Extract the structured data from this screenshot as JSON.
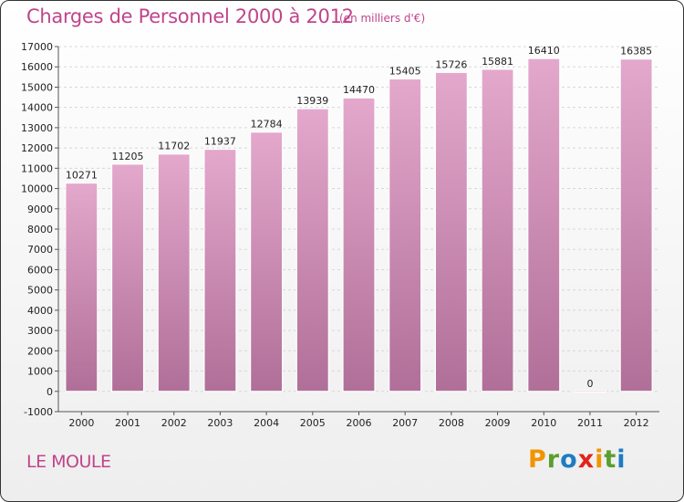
{
  "chart_data": {
    "type": "bar",
    "title": "Charges de Personnel 2000 à 2012",
    "subtitle": "(en milliers d'€)",
    "xlabel": "",
    "ylabel": "",
    "categories": [
      "2000",
      "2001",
      "2002",
      "2003",
      "2004",
      "2005",
      "2006",
      "2007",
      "2008",
      "2009",
      "2010",
      "2011",
      "2012"
    ],
    "values": [
      10271,
      11205,
      11702,
      11937,
      12784,
      13939,
      14470,
      15405,
      15726,
      15881,
      16410,
      0,
      16385
    ],
    "data_labels": [
      "10271",
      "11205",
      "11702",
      "11937",
      "12784",
      "13939",
      "14470",
      "15405",
      "15726",
      "15881",
      "16410",
      "0",
      "16385"
    ],
    "ylim": [
      -1000,
      17000
    ],
    "yticks": [
      -1000,
      0,
      1000,
      2000,
      3000,
      4000,
      5000,
      6000,
      7000,
      8000,
      9000,
      10000,
      11000,
      12000,
      13000,
      14000,
      15000,
      16000,
      17000
    ],
    "ytick_labels": [
      "-1000",
      "0",
      "1000",
      "2000",
      "3000",
      "4000",
      "5000",
      "6000",
      "7000",
      "8000",
      "9000",
      "10000",
      "11000",
      "12000",
      "13000",
      "14000",
      "15000",
      "16000",
      "17000"
    ],
    "grid": true,
    "legend": "none",
    "colors": {
      "bar_top": "#e4a8cc",
      "bar_bottom": "#b06f98",
      "grid": "#d8d8d8",
      "title": "#c0448b"
    }
  },
  "footer": {
    "commune": "LE MOULE"
  },
  "logo": {
    "letters": [
      "P",
      "r",
      "o",
      "x",
      "i",
      "t",
      "i"
    ],
    "colors": [
      "#f29400",
      "#5a9e2f",
      "#1d7cc2",
      "#e2231a",
      "#f29400",
      "#5a9e2f",
      "#1d7cc2"
    ]
  }
}
